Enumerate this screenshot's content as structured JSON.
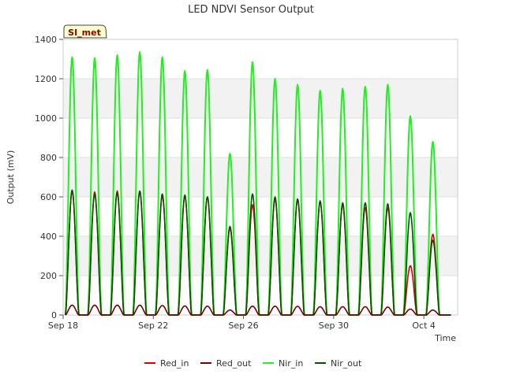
{
  "chart_data": {
    "type": "line",
    "title": "LED NDVI Sensor Output",
    "site_label": "SI_met",
    "xlabel": "Time",
    "ylabel": "Output (mV)",
    "xlim": [
      0,
      17.5
    ],
    "ylim": [
      0,
      1400
    ],
    "x_ticks": [
      {
        "value": 0,
        "label": "Sep 18"
      },
      {
        "value": 4,
        "label": "Sep 22"
      },
      {
        "value": 8,
        "label": "Sep 26"
      },
      {
        "value": 12,
        "label": "Sep 30"
      },
      {
        "value": 16,
        "label": "Oct 4"
      }
    ],
    "y_ticks": [
      0,
      200,
      400,
      600,
      800,
      1000,
      1200,
      1400
    ],
    "day_starts": [
      0.1,
      1.1,
      2.1,
      3.1,
      4.1,
      5.1,
      6.1,
      7.1,
      8.1,
      9.1,
      10.1,
      11.1,
      12.1,
      13.1,
      14.1,
      15.1,
      16.1
    ],
    "daily_peak_width_days": 0.6,
    "series": [
      {
        "name": "Red_in",
        "color": "#dd0000",
        "daily_peaks": [
          630,
          625,
          630,
          625,
          605,
          605,
          600,
          440,
          560,
          590,
          585,
          575,
          560,
          545,
          545,
          250,
          410
        ]
      },
      {
        "name": "Red_out",
        "color": "#770000",
        "daily_peaks": [
          50,
          50,
          50,
          50,
          48,
          46,
          45,
          25,
          45,
          45,
          44,
          42,
          42,
          42,
          40,
          30,
          25
        ]
      },
      {
        "name": "Nir_in",
        "color": "#22ee22",
        "daily_peaks": [
          1310,
          1305,
          1320,
          1335,
          1310,
          1240,
          1245,
          820,
          1285,
          1200,
          1170,
          1140,
          1150,
          1160,
          1170,
          1010,
          880
        ]
      },
      {
        "name": "Nir_out",
        "color": "#005500",
        "daily_peaks": [
          635,
          615,
          620,
          630,
          615,
          610,
          600,
          450,
          615,
          600,
          590,
          580,
          570,
          570,
          565,
          520,
          380
        ]
      }
    ]
  }
}
